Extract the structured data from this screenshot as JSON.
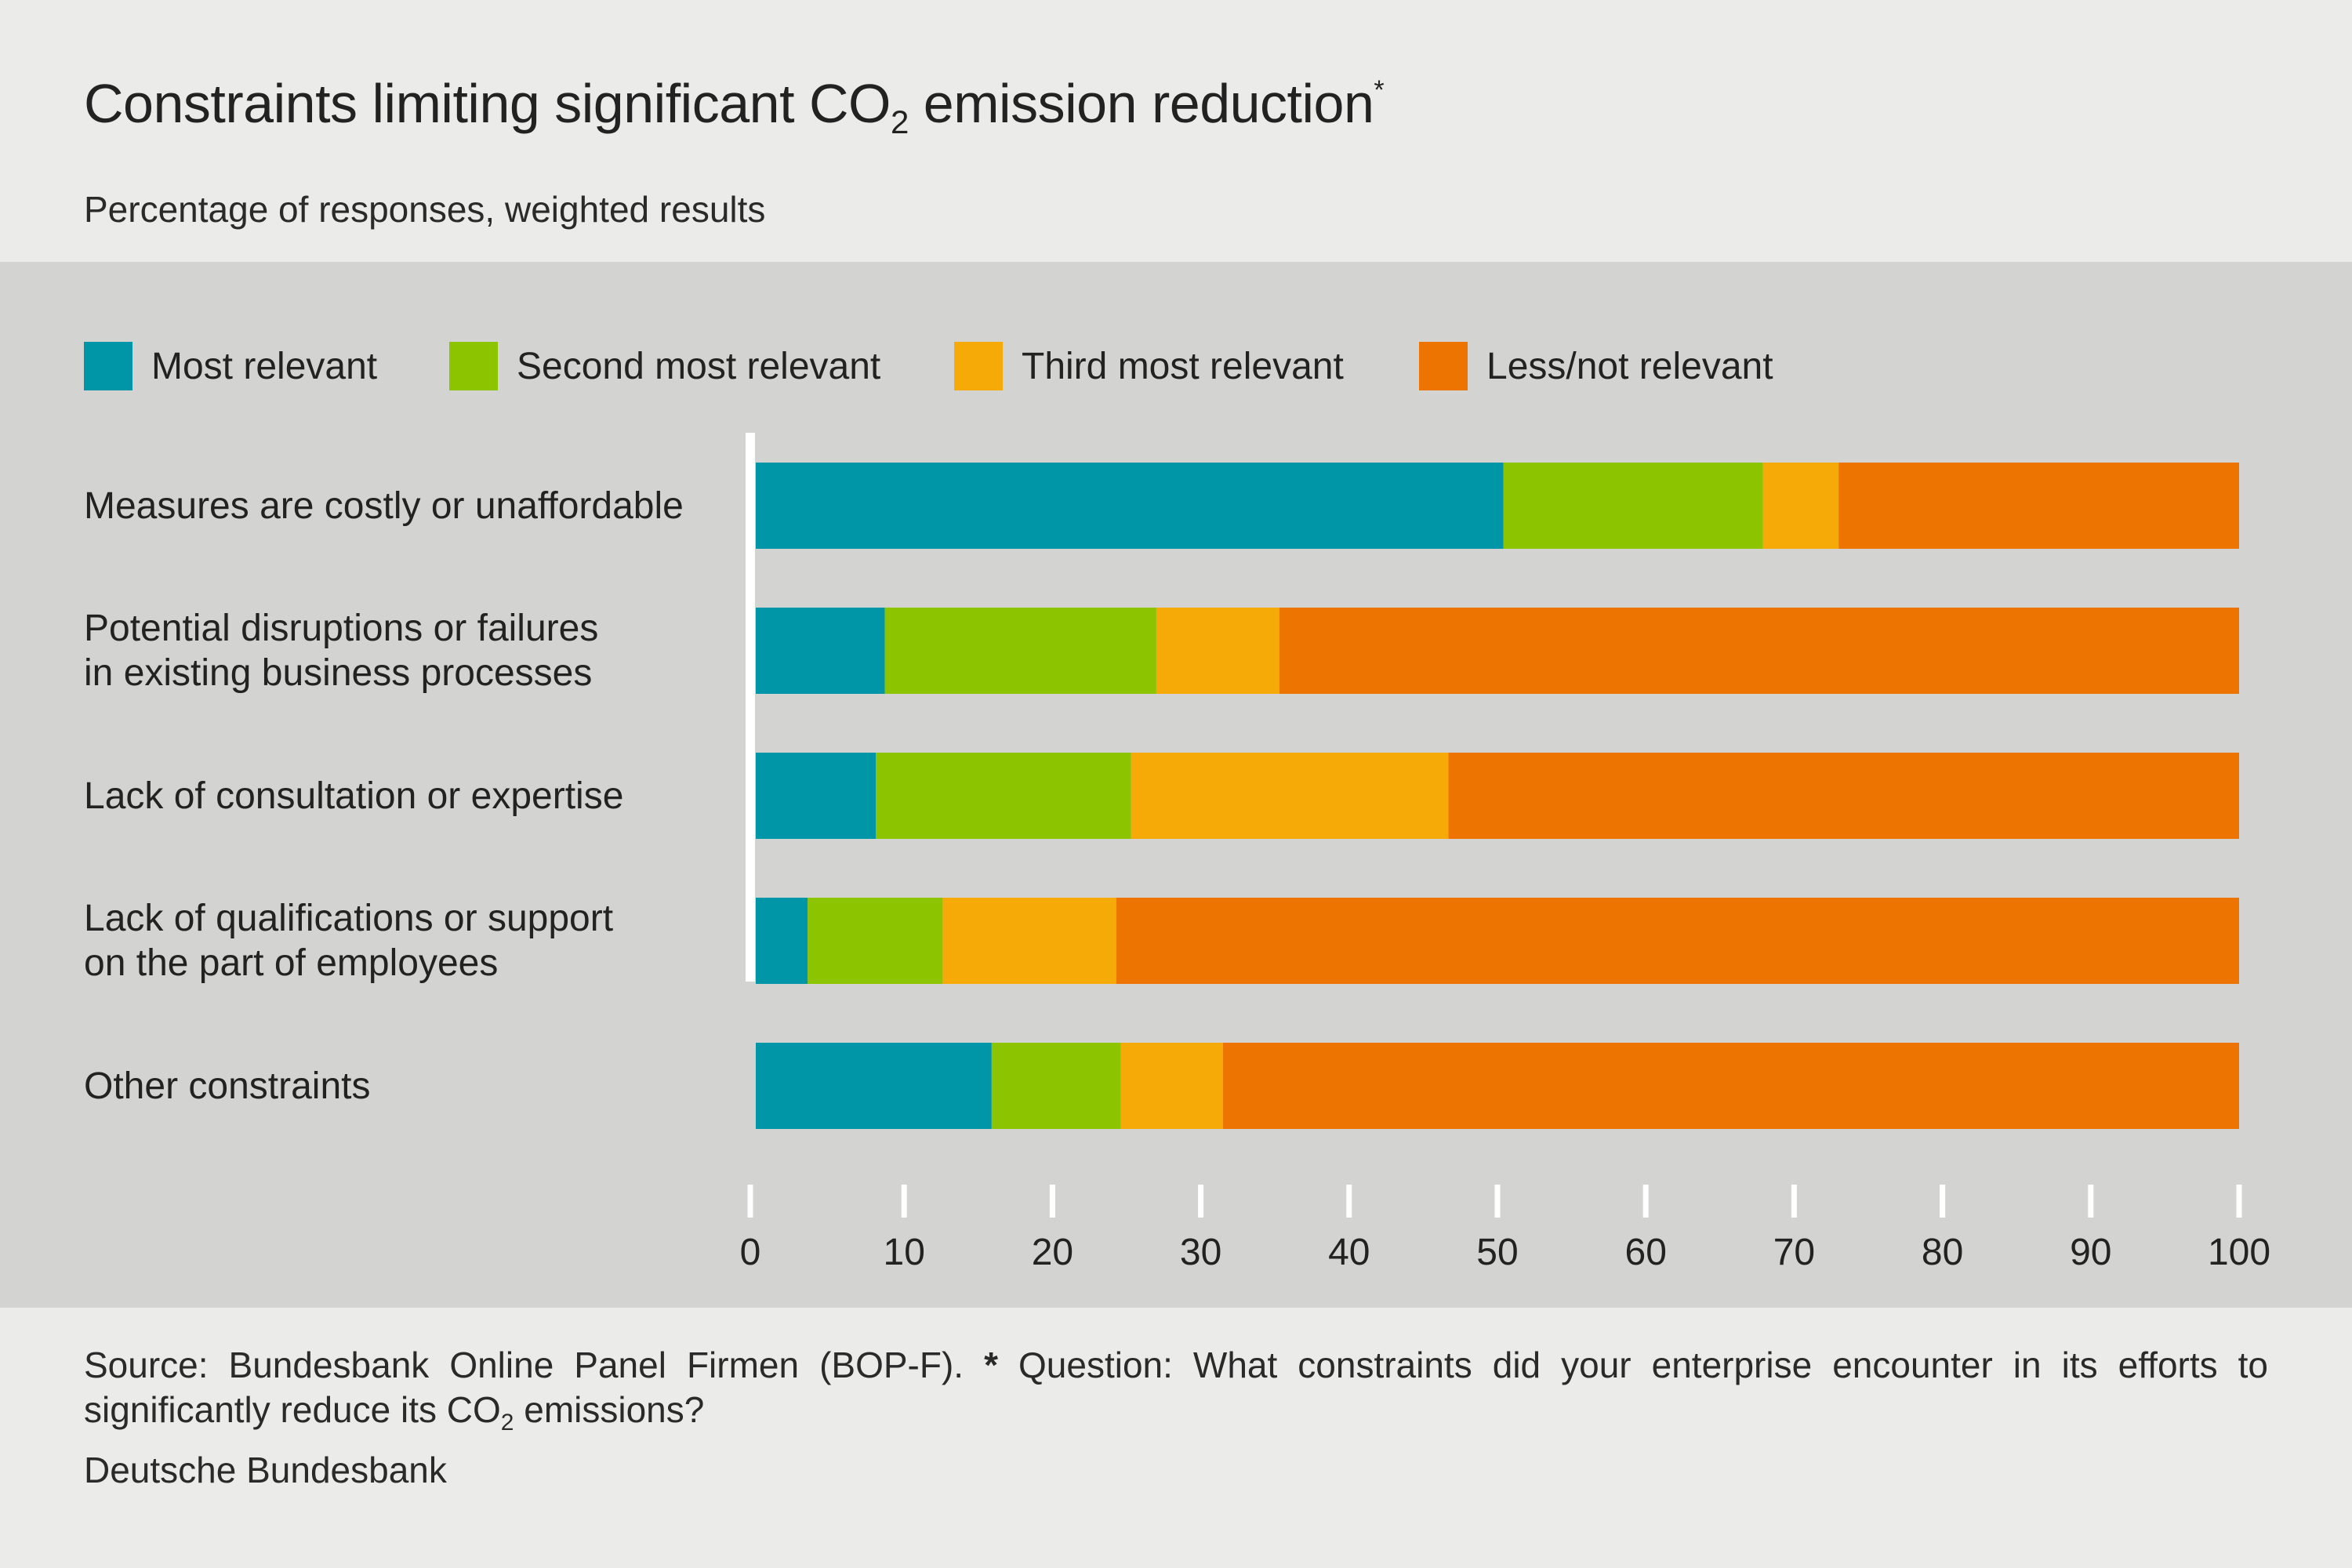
{
  "header": {
    "title_pre": "Constraints limiting significant CO",
    "title_sub": "2",
    "title_post": " emission reduction",
    "title_sup": "*",
    "subtitle": "Percentage of responses, weighted results"
  },
  "colors": {
    "most": "#0096a7",
    "second": "#8dc400",
    "third": "#f5aa08",
    "less": "#ee7401"
  },
  "chart_data": {
    "type": "bar",
    "orientation": "horizontal",
    "stacked": true,
    "categories": [
      [
        "Measures are costly or unaffordable"
      ],
      [
        "Potential disruptions or failures",
        "in existing business processes"
      ],
      [
        "Lack of consultation or expertise"
      ],
      [
        "Lack of qualifications or support",
        "on the part of employees"
      ],
      [
        "Other constraints"
      ]
    ],
    "series": [
      {
        "name": "Most relevant",
        "color_key": "most",
        "values": [
          50.4,
          8.7,
          8.1,
          3.5,
          15.9
        ]
      },
      {
        "name": "Second most relevant",
        "color_key": "second",
        "values": [
          17.5,
          18.3,
          17.2,
          9.1,
          8.7
        ]
      },
      {
        "name": "Third most relevant",
        "color_key": "third",
        "values": [
          5.1,
          8.3,
          21.4,
          11.7,
          6.9
        ]
      },
      {
        "name": "Less/not relevant",
        "color_key": "less",
        "values": [
          27.0,
          64.7,
          53.3,
          75.7,
          68.5
        ]
      }
    ],
    "xlim": [
      0,
      100
    ],
    "xticks": [
      0,
      10,
      20,
      30,
      40,
      50,
      60,
      70,
      80,
      90,
      100
    ],
    "title": "Constraints limiting significant CO2 emission reduction*",
    "xlabel": "",
    "ylabel": "",
    "legend_position": "top-left",
    "grid": false
  },
  "footer": {
    "source_pre": "Source: Bundesbank Online Panel Firmen (BOP-F). ",
    "source_star": "*",
    "source_question": " Question: What constraints did your enterprise encounter in its efforts to significantly reduce its CO",
    "source_sub": "2",
    "source_post": " emissions?",
    "credit": "Deutsche Bundesbank"
  }
}
